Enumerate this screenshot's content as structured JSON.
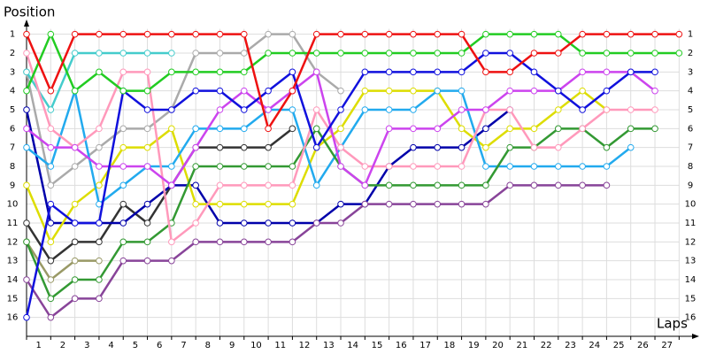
{
  "chart_data": {
    "type": "line",
    "y_label": "Position",
    "x_label": "Laps",
    "x": [
      0,
      1,
      2,
      3,
      4,
      5,
      6,
      7,
      8,
      9,
      10,
      11,
      12,
      13,
      14,
      15,
      16,
      17,
      18,
      19,
      20,
      21,
      22,
      23,
      24,
      25,
      26,
      27
    ],
    "xlim": [
      0,
      27.5
    ],
    "ylim": [
      17,
      0.5
    ],
    "xticks": [
      {
        "value": 0.5,
        "label": "1"
      },
      {
        "value": 1.5,
        "label": "2"
      },
      {
        "value": 2.5,
        "label": "3"
      },
      {
        "value": 3.5,
        "label": "4"
      },
      {
        "value": 4.5,
        "label": "5"
      },
      {
        "value": 5.5,
        "label": "6"
      },
      {
        "value": 6.5,
        "label": "7"
      },
      {
        "value": 7.5,
        "label": "8"
      },
      {
        "value": 8.5,
        "label": "9"
      },
      {
        "value": 9.5,
        "label": "10"
      },
      {
        "value": 10.5,
        "label": "11"
      },
      {
        "value": 11.5,
        "label": "12"
      },
      {
        "value": 12.5,
        "label": "13"
      },
      {
        "value": 13.5,
        "label": "14"
      },
      {
        "value": 14.5,
        "label": "15"
      },
      {
        "value": 15.5,
        "label": "16"
      },
      {
        "value": 16.5,
        "label": "17"
      },
      {
        "value": 17.5,
        "label": "18"
      },
      {
        "value": 18.5,
        "label": "19"
      },
      {
        "value": 19.5,
        "label": "20"
      },
      {
        "value": 20.5,
        "label": "21"
      },
      {
        "value": 21.5,
        "label": "22"
      },
      {
        "value": 22.5,
        "label": "23"
      },
      {
        "value": 23.5,
        "label": "24"
      },
      {
        "value": 24.5,
        "label": "25"
      },
      {
        "value": 25.5,
        "label": "26"
      },
      {
        "value": 26.5,
        "label": "27"
      }
    ],
    "yticks": [
      1,
      2,
      3,
      4,
      5,
      6,
      7,
      8,
      9,
      10,
      11,
      12,
      13,
      14,
      15,
      16
    ],
    "grid": true,
    "series": [
      {
        "color": "#aaaaaa",
        "values": [
          3,
          9,
          8,
          7,
          6,
          6,
          5,
          2,
          2,
          2,
          1,
          1,
          3,
          4,
          null,
          null,
          null,
          null,
          null,
          null,
          null,
          null,
          null,
          null,
          null,
          null,
          null,
          null
        ]
      },
      {
        "color": "#44cccc",
        "values": [
          3,
          5,
          2,
          2,
          2,
          2,
          2,
          null,
          null,
          null,
          null,
          null,
          null,
          null,
          null,
          null,
          null,
          null,
          null,
          null,
          null,
          null,
          null,
          null,
          null,
          null,
          null,
          null
        ]
      },
      {
        "color": "#999966",
        "values": [
          12,
          14,
          13,
          13,
          null,
          null,
          null,
          null,
          null,
          null,
          null,
          null,
          null,
          null,
          null,
          null,
          null,
          null,
          null,
          null,
          null,
          null,
          null,
          null,
          null,
          null,
          null,
          null
        ]
      },
      {
        "color": "#333333",
        "values": [
          11,
          13,
          12,
          12,
          10,
          11,
          9,
          7,
          7,
          7,
          7,
          6,
          null,
          null,
          null,
          null,
          null,
          null,
          null,
          null,
          null,
          null,
          null,
          null,
          null,
          null,
          null,
          null
        ]
      },
      {
        "color": "#0000aa",
        "values": [
          5,
          11,
          11,
          11,
          11,
          10,
          9,
          9,
          11,
          11,
          11,
          11,
          11,
          10,
          10,
          8,
          7,
          7,
          7,
          6,
          5,
          null,
          null,
          null,
          null,
          null,
          null,
          null
        ]
      },
      {
        "color": "#884499",
        "values": [
          14,
          16,
          15,
          15,
          13,
          13,
          13,
          12,
          12,
          12,
          12,
          12,
          11,
          11,
          10,
          10,
          10,
          10,
          10,
          10,
          9,
          9,
          9,
          9,
          9,
          null,
          null,
          null
        ]
      },
      {
        "color": "#dddd00",
        "values": [
          9,
          12,
          10,
          9,
          7,
          7,
          6,
          10,
          10,
          10,
          10,
          10,
          7,
          6,
          4,
          4,
          4,
          4,
          6,
          7,
          6,
          6,
          5,
          4,
          5,
          null,
          null,
          null
        ]
      },
      {
        "color": "#22aaee",
        "values": [
          7,
          8,
          4,
          10,
          9,
          8,
          8,
          6,
          6,
          6,
          5,
          5,
          9,
          7,
          5,
          5,
          5,
          4,
          4,
          8,
          8,
          8,
          8,
          8,
          8,
          7,
          null,
          null
        ]
      },
      {
        "color": "#339933",
        "values": [
          12,
          15,
          14,
          14,
          12,
          12,
          11,
          8,
          8,
          8,
          8,
          8,
          6,
          8,
          9,
          9,
          9,
          9,
          9,
          9,
          7,
          7,
          6,
          6,
          7,
          6,
          6,
          null
        ]
      },
      {
        "color": "#ff99bb",
        "values": [
          2,
          6,
          7,
          6,
          3,
          3,
          12,
          11,
          9,
          9,
          9,
          9,
          5,
          7,
          8,
          8,
          8,
          8,
          8,
          5,
          5,
          7,
          7,
          6,
          5,
          5,
          5,
          null
        ]
      },
      {
        "color": "#cc44ee",
        "values": [
          6,
          7,
          7,
          8,
          8,
          8,
          9,
          7,
          5,
          4,
          5,
          4,
          3,
          8,
          9,
          6,
          6,
          6,
          5,
          5,
          4,
          4,
          4,
          3,
          3,
          3,
          4,
          null
        ]
      },
      {
        "color": "#1111dd",
        "values": [
          16,
          10,
          11,
          11,
          4,
          5,
          5,
          4,
          4,
          5,
          4,
          3,
          7,
          5,
          3,
          3,
          3,
          3,
          3,
          2,
          2,
          3,
          4,
          5,
          4,
          3,
          3,
          null
        ]
      },
      {
        "color": "#22cc22",
        "values": [
          4,
          1,
          4,
          3,
          4,
          4,
          3,
          3,
          3,
          3,
          2,
          2,
          2,
          2,
          2,
          2,
          2,
          2,
          2,
          1,
          1,
          1,
          1,
          2,
          2,
          2,
          2,
          2
        ]
      },
      {
        "color": "#ee1111",
        "values": [
          1,
          4,
          1,
          1,
          1,
          1,
          1,
          1,
          1,
          1,
          6,
          4,
          1,
          1,
          1,
          1,
          1,
          1,
          1,
          3,
          3,
          2,
          2,
          1,
          1,
          1,
          1,
          1
        ]
      }
    ]
  }
}
